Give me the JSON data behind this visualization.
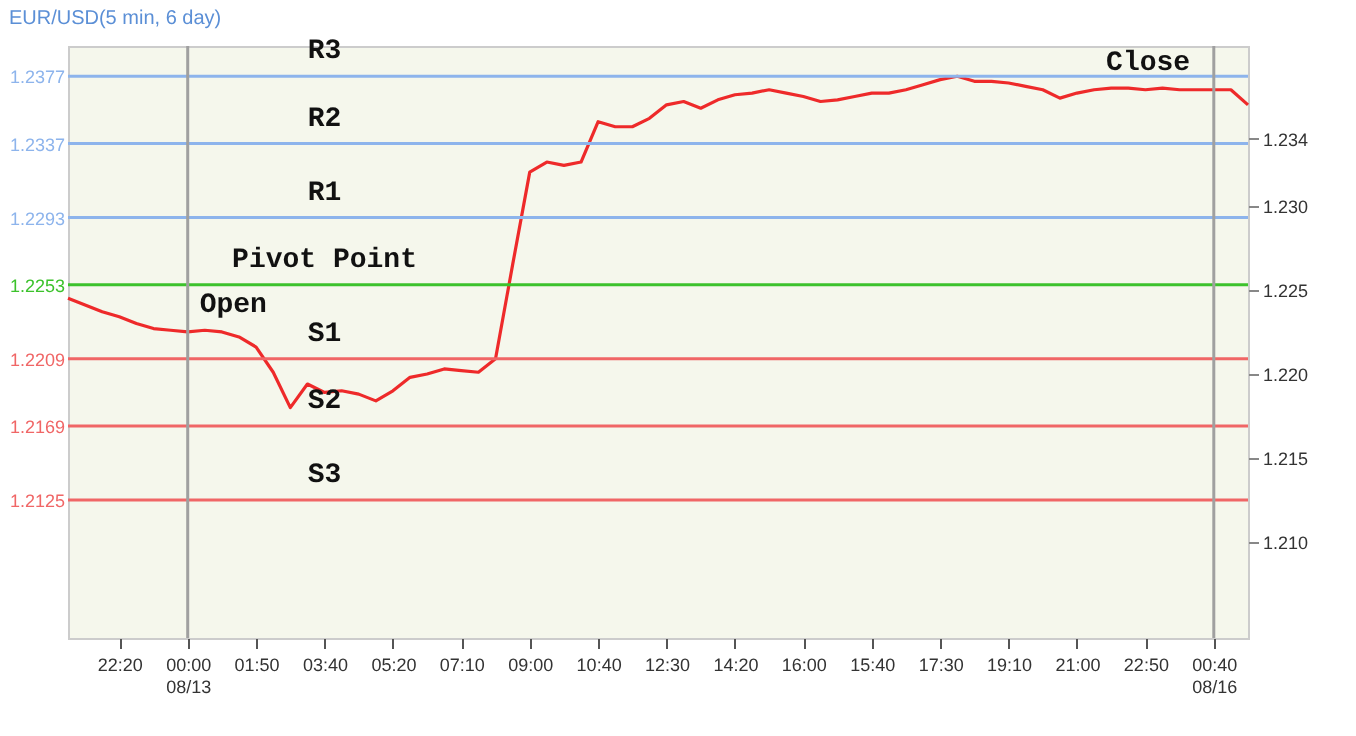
{
  "chart_data": {
    "type": "line",
    "title": "EUR/USD(5 min, 6 day)",
    "categories": [
      null,
      null,
      null,
      "22:20",
      null,
      null,
      null,
      "00:00\n08/13",
      null,
      null,
      null,
      "01:50",
      null,
      null,
      null,
      "03:40",
      null,
      null,
      null,
      "05:20",
      null,
      null,
      null,
      "07:10",
      null,
      null,
      null,
      "09:00",
      null,
      null,
      null,
      "10:40",
      null,
      null,
      null,
      "12:30",
      null,
      null,
      null,
      "14:20",
      null,
      null,
      null,
      "16:00",
      null,
      null,
      null,
      "15:40",
      null,
      null,
      null,
      "17:30",
      null,
      null,
      null,
      "19:10",
      null,
      null,
      null,
      "21:00",
      null,
      null,
      null,
      "22:50",
      null,
      null,
      null,
      "00:40\n08/16",
      null,
      null
    ],
    "series": [
      {
        "color": "#ee2a2a",
        "values": [
          1.2245,
          1.2241,
          1.2237,
          1.2234,
          1.223,
          1.2227,
          1.2226,
          1.2225,
          1.2226,
          1.2225,
          1.2222,
          1.2216,
          1.2201,
          1.218,
          1.2194,
          1.2189,
          1.219,
          1.2188,
          1.2184,
          1.219,
          1.2198,
          1.22,
          1.2203,
          1.2202,
          1.2201,
          1.2209,
          1.2265,
          1.232,
          1.2326,
          1.2324,
          1.2326,
          1.235,
          1.2347,
          1.2347,
          1.2352,
          1.236,
          1.2362,
          1.2358,
          1.2363,
          1.2366,
          1.2367,
          1.2369,
          1.2367,
          1.2365,
          1.2362,
          1.2363,
          1.2365,
          1.2367,
          1.2367,
          1.2369,
          1.2372,
          1.2375,
          1.2377,
          1.2374,
          1.2374,
          1.2373,
          1.2371,
          1.2369,
          1.2364,
          1.2367,
          1.2369,
          1.237,
          1.237,
          1.2369,
          1.237,
          1.2369,
          1.2369,
          1.2369,
          1.2369,
          1.236
        ]
      }
    ],
    "ylim": [
      1.2043,
      1.2395
    ],
    "yticks": [
      1.2377,
      1.2337,
      1.2293,
      1.2253,
      1.2209,
      1.2169,
      1.2125
    ],
    "y2lim": [
      1.2043,
      1.2395
    ],
    "y2ticks": [
      {
        "value": 1.21,
        "label": "1.210"
      },
      1.215,
      {
        "value": 1.22,
        "label": "1.220"
      },
      1.225,
      {
        "value": 1.23,
        "label": "1.230"
      },
      1.234
    ],
    "ref_lines": [
      {
        "axis": "y",
        "value": 1.2377,
        "label": "R3",
        "color": "#8db4ec"
      },
      {
        "axis": "y",
        "value": 1.2337,
        "label": "R2",
        "color": "#8db4ec"
      },
      {
        "axis": "y",
        "value": 1.2293,
        "label": "R1",
        "color": "#8db4ec"
      },
      {
        "axis": "y",
        "value": 1.2253,
        "label": "Pivot Point",
        "color": "#3cc22c"
      },
      {
        "axis": "y",
        "value": 1.2209,
        "label": "S1",
        "color": "#f06666"
      },
      {
        "axis": "y",
        "value": 1.2169,
        "label": "S2",
        "color": "#f06666"
      },
      {
        "axis": "y",
        "value": 1.2125,
        "label": "S3",
        "color": "#f06666"
      },
      {
        "axis": "x",
        "value": "00:00\n08/13",
        "color": "#a0a0a0"
      },
      {
        "axis": "x",
        "value": "00:40\n08/16",
        "color": "#a0a0a0"
      }
    ],
    "annotations": [
      {
        "text": "Open",
        "x": "00:00\n08/13",
        "y": 1.2225
      },
      {
        "text": "Close",
        "y": 1.2369
      }
    ],
    "grid": false
  }
}
